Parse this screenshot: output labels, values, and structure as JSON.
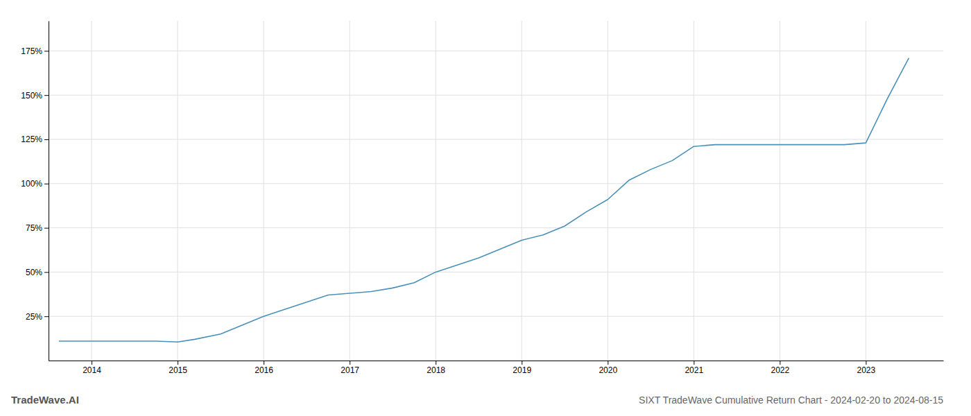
{
  "chart_data": {
    "type": "line",
    "title": "SIXT TradeWave Cumulative Return Chart - 2024-02-20 to 2024-08-15",
    "annotations": [
      {
        "text": "TradeWave.AI"
      }
    ],
    "x": [
      2013.62,
      2013.75,
      2014.0,
      2014.25,
      2014.5,
      2014.75,
      2015.0,
      2015.2,
      2015.5,
      2015.75,
      2016.0,
      2016.25,
      2016.5,
      2016.75,
      2017.0,
      2017.25,
      2017.5,
      2017.75,
      2018.0,
      2018.25,
      2018.5,
      2018.75,
      2019.0,
      2019.25,
      2019.5,
      2019.75,
      2020.0,
      2020.25,
      2020.5,
      2020.75,
      2021.0,
      2021.25,
      2021.5,
      2021.75,
      2022.0,
      2022.25,
      2022.5,
      2022.75,
      2023.0,
      2023.25,
      2023.5
    ],
    "values": [
      11,
      11,
      11,
      11,
      11,
      11,
      10.5,
      12,
      15,
      20,
      25,
      29,
      33,
      37,
      38,
      39,
      41,
      44,
      50,
      54,
      58,
      63,
      68,
      71,
      76,
      84,
      91,
      102,
      108,
      113,
      121,
      122,
      122,
      122,
      122,
      122,
      122,
      122,
      123,
      148,
      171
    ],
    "color": "#4a90b8",
    "xlim": [
      2013.5,
      2023.9
    ],
    "xticks": [
      2014,
      2015,
      2016,
      2017,
      2018,
      2019,
      2020,
      2021,
      2022,
      2023
    ],
    "ylim": [
      0,
      192
    ],
    "yticks": [
      {
        "value": 25,
        "label": "25%"
      },
      {
        "value": 50,
        "label": "50%"
      },
      {
        "value": 75,
        "label": "75%"
      },
      {
        "value": 100,
        "label": "100%"
      },
      {
        "value": 125,
        "label": "125%"
      },
      {
        "value": 150,
        "label": "150%"
      },
      {
        "value": 175,
        "label": "175%"
      }
    ],
    "grid": true
  }
}
